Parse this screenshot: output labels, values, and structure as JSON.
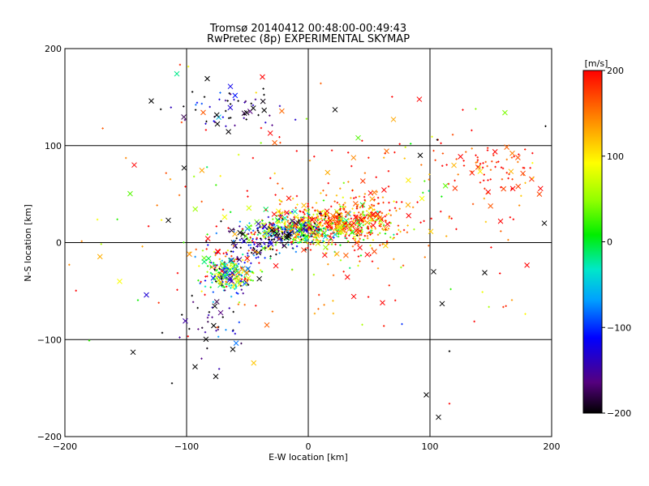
{
  "chart_data": {
    "type": "scatter",
    "title": "Tromsø 20140412 00:48:00-00:49:43",
    "subtitle": "RwPretec (8p) EXPERIMENTAL SKYMAP",
    "xlabel": "E-W location [km]",
    "ylabel": "N-S location [km]",
    "xlim": [
      -200,
      200
    ],
    "ylim": [
      -200,
      200
    ],
    "x_ticks": [
      -200,
      -100,
      0,
      100,
      200
    ],
    "y_ticks": [
      -200,
      -100,
      0,
      100,
      200
    ],
    "x_tick_labels": [
      "−200",
      "−100",
      "0",
      "100",
      "200"
    ],
    "y_tick_labels": [
      "−200",
      "−100",
      "0",
      "100",
      "200"
    ],
    "grid": true,
    "colorbar": {
      "label": "[m/s]",
      "range": [
        -200,
        200
      ],
      "ticks": [
        -200,
        -100,
        0,
        100,
        200
      ],
      "tick_labels": [
        "−200",
        "−100",
        "0",
        "100",
        "200"
      ],
      "colormap": "rainbow (black-purple-blue-cyan-green-yellow-orange-red)"
    },
    "marker_types": [
      "cross (x)",
      "small dot (+)"
    ],
    "clusters": [
      {
        "cx": 20,
        "cy": 18,
        "sx": 28,
        "sy": 10,
        "n": 520,
        "vmean": 120,
        "vsd": 90
      },
      {
        "cx": 40,
        "cy": 30,
        "sx": 22,
        "sy": 14,
        "n": 160,
        "vmean": 170,
        "vsd": 50
      },
      {
        "cx": -15,
        "cy": 12,
        "sx": 18,
        "sy": 8,
        "n": 260,
        "vmean": -40,
        "vsd": 130
      },
      {
        "cx": -45,
        "cy": 0,
        "sx": 18,
        "sy": 10,
        "n": 90,
        "vmean": -150,
        "vsd": 60
      },
      {
        "cx": -65,
        "cy": -32,
        "sx": 10,
        "sy": 10,
        "n": 260,
        "vmean": 0,
        "vsd": 110
      },
      {
        "cx": -65,
        "cy": 138,
        "sx": 20,
        "sy": 10,
        "n": 60,
        "vmean": -180,
        "vsd": 60
      },
      {
        "cx": 155,
        "cy": 75,
        "sx": 25,
        "sy": 15,
        "n": 90,
        "vmean": 180,
        "vsd": 40
      },
      {
        "cx": -75,
        "cy": -85,
        "sx": 12,
        "sy": 18,
        "n": 40,
        "vmean": -170,
        "vsd": 60
      },
      {
        "cx": 0,
        "cy": 20,
        "sx": 100,
        "sy": 60,
        "n": 260,
        "vmean": 140,
        "vsd": 80
      }
    ],
    "highlighted_points": [
      {
        "x": -108,
        "y": 174,
        "v": -20,
        "m": "x"
      },
      {
        "x": -83,
        "y": 169,
        "v": -200,
        "m": "x"
      },
      {
        "x": -64,
        "y": 161,
        "v": -120,
        "m": "x"
      },
      {
        "x": -129,
        "y": 146,
        "v": -200,
        "m": "x"
      },
      {
        "x": 22,
        "y": 137,
        "v": -200,
        "m": "x"
      },
      {
        "x": 70,
        "y": 127,
        "v": 130,
        "m": "x"
      },
      {
        "x": 41,
        "y": 108,
        "v": 30,
        "m": "x"
      },
      {
        "x": -143,
        "y": 80,
        "v": 200,
        "m": "x"
      },
      {
        "x": -102,
        "y": 77,
        "v": -200,
        "m": "x"
      },
      {
        "x": -115,
        "y": 23,
        "v": -200,
        "m": "x"
      },
      {
        "x": -155,
        "y": -40,
        "v": 90,
        "m": "x"
      },
      {
        "x": -133,
        "y": -54,
        "v": -130,
        "m": "x"
      },
      {
        "x": -144,
        "y": -113,
        "v": -200,
        "m": "x"
      },
      {
        "x": -93,
        "y": -128,
        "v": -200,
        "m": "x"
      },
      {
        "x": -62,
        "y": -110,
        "v": -200,
        "m": "x"
      },
      {
        "x": -76,
        "y": -138,
        "v": -200,
        "m": "x"
      },
      {
        "x": -120,
        "y": -93,
        "v": -200,
        "m": "+"
      },
      {
        "x": -180,
        "y": -101,
        "v": 20,
        "m": "+"
      },
      {
        "x": -112,
        "y": -145,
        "v": -200,
        "m": "+"
      },
      {
        "x": 97,
        "y": -157,
        "v": -200,
        "m": "x"
      },
      {
        "x": 107,
        "y": -180,
        "v": -200,
        "m": "x"
      },
      {
        "x": 116,
        "y": -166,
        "v": 200,
        "m": "+"
      },
      {
        "x": 116,
        "y": -112,
        "v": -200,
        "m": "+"
      },
      {
        "x": 145,
        "y": -31,
        "v": -200,
        "m": "x"
      },
      {
        "x": 194,
        "y": 20,
        "v": -200,
        "m": "x"
      },
      {
        "x": 195,
        "y": 120,
        "v": -200,
        "m": "+"
      },
      {
        "x": 106,
        "y": 106,
        "v": -200,
        "m": "+"
      },
      {
        "x": 158,
        "y": 22,
        "v": 200,
        "m": "x"
      },
      {
        "x": 77,
        "y": -84,
        "v": -100,
        "m": "+"
      },
      {
        "x": -34,
        "y": -85,
        "v": 160,
        "m": "x"
      },
      {
        "x": 92,
        "y": 90,
        "v": -200,
        "m": "x"
      },
      {
        "x": 61,
        "y": -62,
        "v": 200,
        "m": "x"
      },
      {
        "x": 103,
        "y": -30,
        "v": -200,
        "m": "x"
      },
      {
        "x": 110,
        "y": -63,
        "v": -200,
        "m": "x"
      }
    ]
  }
}
